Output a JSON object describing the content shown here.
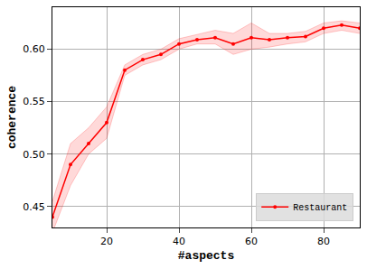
{
  "chart_data": {
    "type": "line",
    "x_label": "#aspects",
    "y_label": "coherence",
    "x": [
      5,
      10,
      15,
      20,
      25,
      30,
      35,
      40,
      45,
      50,
      55,
      60,
      65,
      70,
      75,
      80,
      85,
      90
    ],
    "series": [
      {
        "name": "Restaurant",
        "color": "#ff0000",
        "marker": "dot",
        "values": [
          0.44,
          0.49,
          0.51,
          0.53,
          0.58,
          0.59,
          0.595,
          0.605,
          0.609,
          0.611,
          0.605,
          0.611,
          0.609,
          0.611,
          0.612,
          0.62,
          0.623,
          0.62
        ],
        "lower": [
          0.425,
          0.47,
          0.5,
          0.515,
          0.575,
          0.585,
          0.59,
          0.6,
          0.605,
          0.605,
          0.595,
          0.6,
          0.602,
          0.605,
          0.607,
          0.615,
          0.618,
          0.615
        ],
        "upper": [
          0.455,
          0.51,
          0.525,
          0.545,
          0.585,
          0.595,
          0.6,
          0.61,
          0.614,
          0.618,
          0.615,
          0.625,
          0.615,
          0.615,
          0.617,
          0.625,
          0.627,
          0.625
        ]
      }
    ],
    "xlim": [
      5,
      90
    ],
    "xticks": [
      20,
      40,
      60,
      80
    ],
    "ylim": [
      0.43,
      0.64
    ],
    "yticks": [
      0.45,
      {
        "value": 0.5,
        "label": "0.50"
      },
      0.55,
      {
        "value": 0.6,
        "label": "0.60"
      }
    ],
    "grid": true,
    "legend": "lower right"
  }
}
